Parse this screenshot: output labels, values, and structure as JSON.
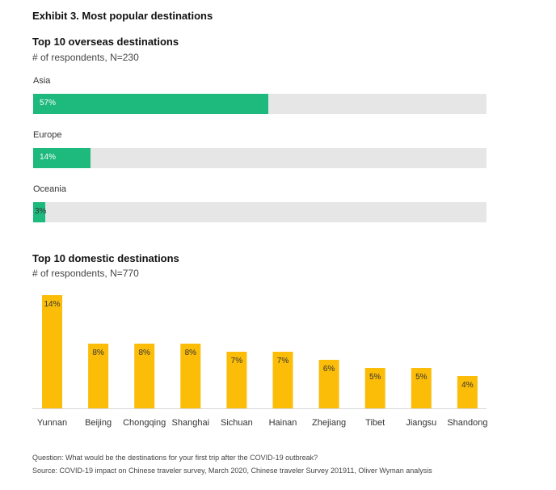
{
  "exhibit_title": "Exhibit 3.  Most popular destinations",
  "footnotes": {
    "question": "Question: What would be the destinations for your first trip after the COVID-19 outbreak?",
    "source": "Source: COVID-19 impact on Chinese traveler survey, March 2020, Chinese traveler Survey 201911, Oliver Wyman analysis"
  },
  "colors": {
    "overseas_bar": "#1db97d",
    "domestic_bar": "#fbbd08",
    "track": "#e6e6e6"
  },
  "chart_data": [
    {
      "type": "bar",
      "orientation": "horizontal",
      "title": "Top 10 overseas destinations",
      "subtitle": "# of respondents, N=230",
      "categories": [
        "Asia",
        "Europe",
        "Oceania"
      ],
      "values": [
        57,
        14,
        3
      ],
      "value_labels": [
        "57%",
        "14%",
        "3%"
      ],
      "unit": "%",
      "xlim": [
        0,
        100
      ],
      "grid": false
    },
    {
      "type": "bar",
      "orientation": "vertical",
      "title": "Top 10 domestic destinations",
      "subtitle": "# of respondents, N=770",
      "categories": [
        "Yunnan",
        "Beijing",
        "Chongqing",
        "Shanghai",
        "Sichuan",
        "Hainan",
        "Zhejiang",
        "Tibet",
        "Jiangsu",
        "Shandong"
      ],
      "values": [
        14,
        8,
        8,
        8,
        7,
        7,
        6,
        5,
        5,
        4
      ],
      "value_labels": [
        "14%",
        "8%",
        "8%",
        "8%",
        "7%",
        "7%",
        "6%",
        "5%",
        "5%",
        "4%"
      ],
      "unit": "%",
      "ylim": [
        0,
        14
      ],
      "grid": false
    }
  ]
}
